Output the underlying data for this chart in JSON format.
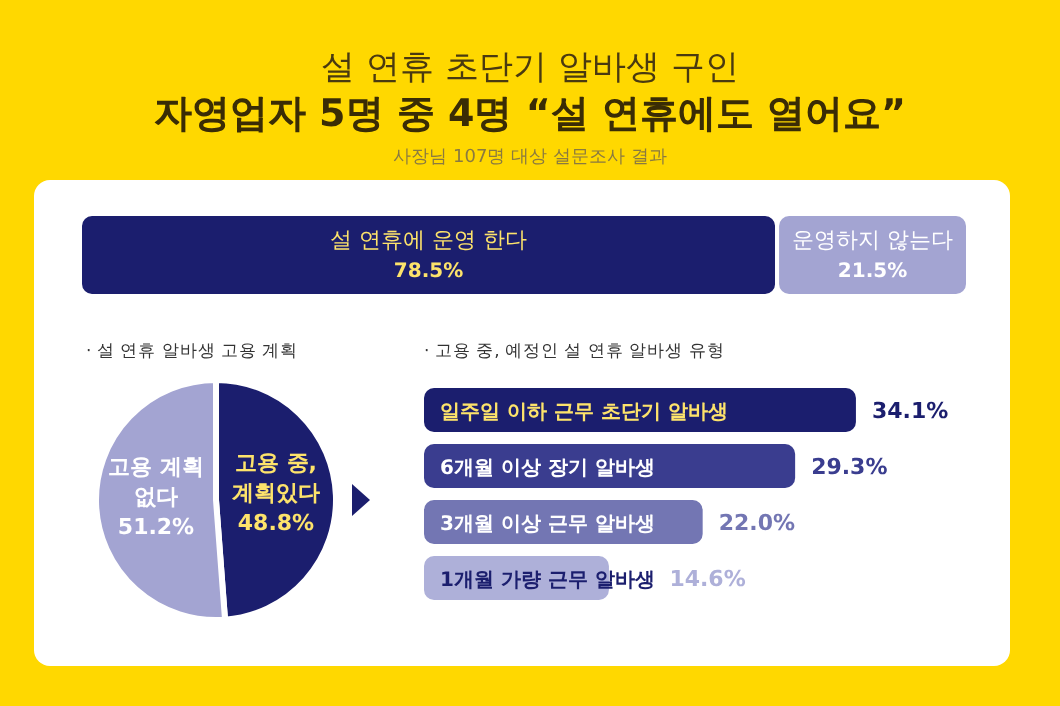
{
  "chart_data": [
    {
      "type": "bar",
      "orientation": "horizontal",
      "stacked": true,
      "title": "설 연휴 초단기 알바생 구인",
      "subtitle": "자영업자 5명 중 4명 “설 연휴에도 열어요”",
      "annotations": [
        "사장님 107명 대상 설문조사 결과"
      ],
      "categories": [
        null
      ],
      "xlim": [
        0,
        100
      ],
      "tick_labels": false,
      "legend": false,
      "grid": false,
      "series": [
        {
          "name": "설 연휴에 운영 한다",
          "color": "#1b1e6e",
          "values": [
            78.5
          ],
          "value_labels": [
            "78.5%"
          ]
        },
        {
          "name": "운영하지 않는다",
          "color": "#a3a4d2",
          "values": [
            21.5
          ],
          "value_labels": [
            "21.5%"
          ]
        }
      ]
    },
    {
      "type": "pie",
      "title": "· 설 연휴 알바생 고용 계획",
      "categories": [
        "고용 중, 계획있다",
        "고용 계획 없다"
      ],
      "values": [
        48.8,
        51.2
      ],
      "colors": [
        "#1b1e6e",
        "#a3a4d2"
      ],
      "value_labels": [
        "48.8%",
        "51.2%"
      ],
      "legend": false
    },
    {
      "type": "bar",
      "orientation": "horizontal",
      "title": "· 고용 중, 예정인 설 연휴 알바생 유형",
      "categories": [
        "일주일 이하 근무 초단기 알바생",
        "6개월 이상 장기 알바생",
        "3개월 이상 근무 알바생",
        "1개월 가량 근무 알바생"
      ],
      "values": [
        34.1,
        29.3,
        22.0,
        14.6
      ],
      "colors": [
        "#1b1e6e",
        "#3a3d8f",
        "#7376b3",
        "#aeb0d9"
      ],
      "value_labels": [
        "34.1%",
        "29.3%",
        "22.0%",
        "14.6%"
      ],
      "tick_labels": false,
      "legend": false,
      "grid": false
    }
  ]
}
